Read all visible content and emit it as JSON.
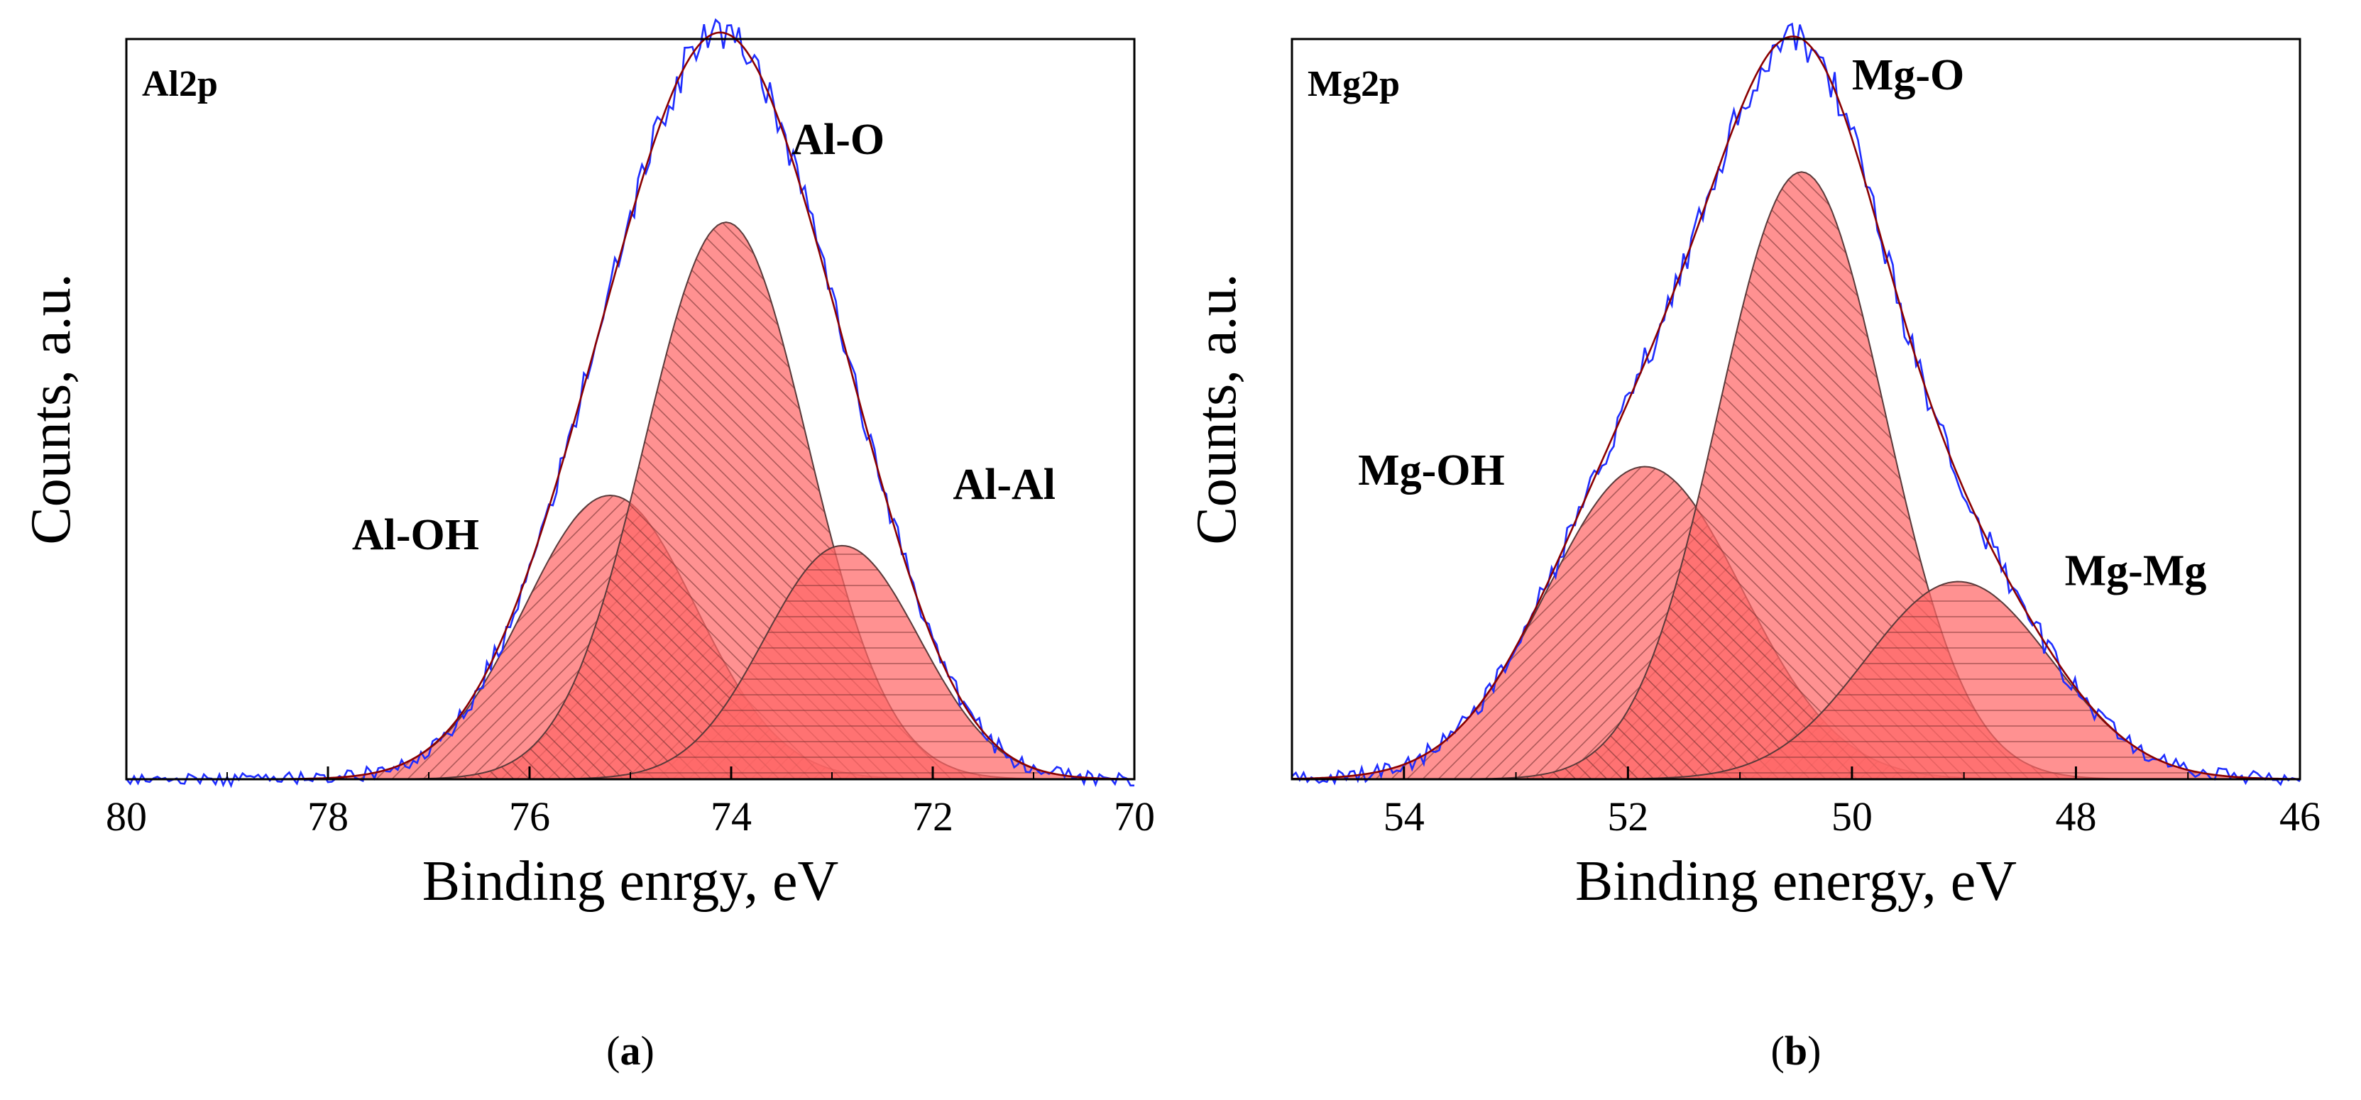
{
  "chart_data": [
    {
      "type": "area",
      "panel_label": "Al2p",
      "caption": {
        "open": "(",
        "letter": "a",
        "close": ")"
      },
      "xlabel": "Binding enrgy, eV",
      "ylabel": "Counts, a.u.",
      "xlim": [
        80,
        70
      ],
      "ylim": [
        0,
        1.03
      ],
      "x_reversed": true,
      "xticks": [
        80,
        78,
        76,
        74,
        72,
        70
      ],
      "yticks": [],
      "background_level": 0.0,
      "peaks": [
        {
          "name": "Al-OH",
          "center": 75.2,
          "height": 0.395,
          "fwhm": 2.0,
          "label_x": 76.5,
          "label_y": 0.32,
          "label_anchor": "end"
        },
        {
          "name": "Al-O",
          "center": 74.05,
          "height": 0.775,
          "fwhm": 1.9,
          "label_x": 73.4,
          "label_y": 0.87,
          "label_anchor": "start"
        },
        {
          "name": "Al-Al",
          "center": 72.9,
          "height": 0.325,
          "fwhm": 1.8,
          "label_x": 71.8,
          "label_y": 0.39,
          "label_anchor": "start"
        }
      ],
      "series": [
        {
          "name": "Experimental",
          "color": "#1f2dff"
        },
        {
          "name": "Envelope fit",
          "color": "#8b0000"
        }
      ],
      "fill_color": "#ff6666"
    },
    {
      "type": "area",
      "panel_label": "Mg2p",
      "caption": {
        "open": "(",
        "letter": "b",
        "close": ")"
      },
      "xlabel": "Binding energy, eV",
      "ylabel": "Counts, a.u.",
      "xlim": [
        55,
        46
      ],
      "ylim": [
        0,
        1.03
      ],
      "x_reversed": true,
      "xticks": [
        54,
        52,
        50,
        48,
        46
      ],
      "yticks": [],
      "background_level": 0.0,
      "peaks": [
        {
          "name": "Mg-OH",
          "center": 51.85,
          "height": 0.435,
          "fwhm": 2.05,
          "label_x": 53.1,
          "label_y": 0.41,
          "label_anchor": "end"
        },
        {
          "name": "Mg-O",
          "center": 50.45,
          "height": 0.845,
          "fwhm": 1.75,
          "label_x": 50.0,
          "label_y": 0.96,
          "label_anchor": "start"
        },
        {
          "name": "Mg-Mg",
          "center": 49.05,
          "height": 0.275,
          "fwhm": 1.95,
          "label_x": 48.1,
          "label_y": 0.27,
          "label_anchor": "start"
        }
      ],
      "series": [
        {
          "name": "Experimental",
          "color": "#1f2dff"
        },
        {
          "name": "Envelope fit",
          "color": "#8b0000"
        }
      ],
      "fill_color": "#ff6666"
    }
  ]
}
